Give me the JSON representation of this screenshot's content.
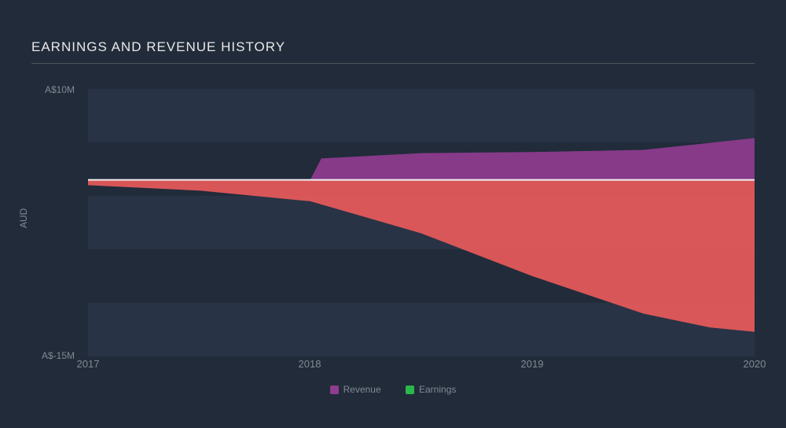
{
  "chart": {
    "type": "area",
    "title": "EARNINGS AND REVENUE HISTORY",
    "background_color": "#212b3a",
    "plot_background_color": "#283345",
    "gridband_colors": [
      "#283345",
      "#212b3a"
    ],
    "title_color": "#e8e8e8",
    "title_fontsize": 17,
    "label_color": "#818a92",
    "label_fontsize": 12,
    "xlim": [
      2017,
      2020
    ],
    "ylim": [
      -15,
      10
    ],
    "ytick_labels": [
      "A$10M",
      "A$-15M"
    ],
    "ytick_values": [
      10,
      -15
    ],
    "yaxis_title": "AUD",
    "xticks": [
      2017,
      2018,
      2019,
      2020
    ],
    "baseline_y": 1.5,
    "baseline_color": "#eef0f2",
    "series": [
      {
        "name": "Revenue",
        "color": "#8f3c8f",
        "legend_color": "#8f3c8f",
        "points": [
          {
            "x": 2017.0,
            "y": 1.5
          },
          {
            "x": 2018.0,
            "y": 1.5
          },
          {
            "x": 2018.05,
            "y": 3.5
          },
          {
            "x": 2018.5,
            "y": 4.0
          },
          {
            "x": 2019.0,
            "y": 4.1
          },
          {
            "x": 2019.5,
            "y": 4.3
          },
          {
            "x": 2020.0,
            "y": 5.4
          },
          {
            "x": 2020.05,
            "y": 5.5
          }
        ]
      },
      {
        "name": "Earnings",
        "color": "#e85a5a",
        "legend_color": "#2bb84a",
        "points": [
          {
            "x": 2017.0,
            "y": 1.0
          },
          {
            "x": 2017.5,
            "y": 0.5
          },
          {
            "x": 2018.0,
            "y": -0.5
          },
          {
            "x": 2018.5,
            "y": -3.5
          },
          {
            "x": 2019.0,
            "y": -7.5
          },
          {
            "x": 2019.5,
            "y": -11.0
          },
          {
            "x": 2019.8,
            "y": -12.3
          },
          {
            "x": 2020.05,
            "y": -12.8
          }
        ]
      }
    ],
    "legend_items": [
      {
        "label": "Revenue",
        "color": "#8f3c8f"
      },
      {
        "label": "Earnings",
        "color": "#2bb84a"
      }
    ]
  }
}
